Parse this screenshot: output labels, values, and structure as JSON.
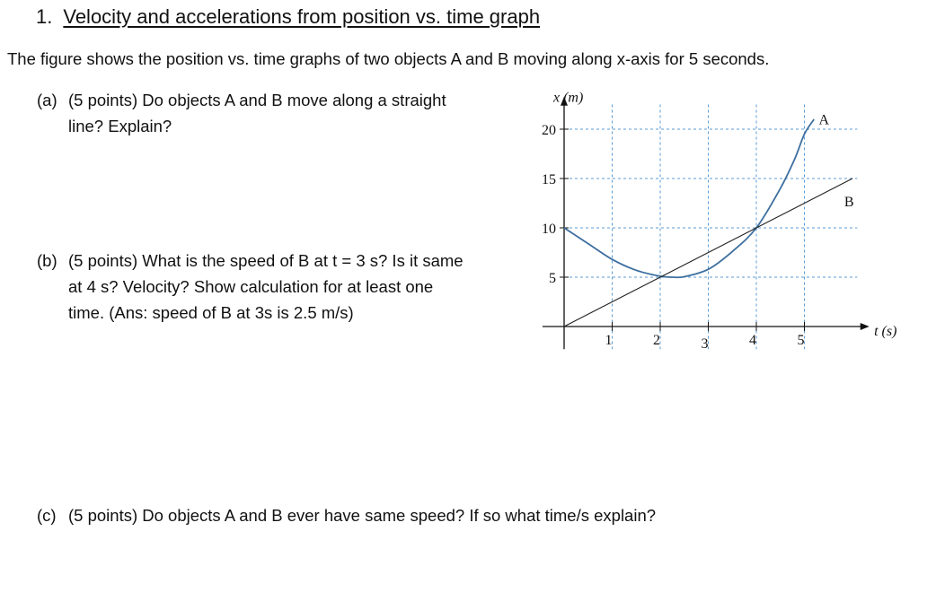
{
  "title": {
    "number": "1.",
    "text": "Velocity and accelerations from position vs. time graph"
  },
  "intro": "The figure shows the position vs. time graphs of two objects A and B moving along x-axis for 5 seconds.",
  "questions": [
    {
      "label": "(a)",
      "lines": [
        "(5 points) Do objects A and B move along a straight",
        "line? Explain?"
      ]
    },
    {
      "label": "(b)",
      "lines": [
        "(5 points) What is the speed of B at t = 3 s? Is it same",
        "at 4 s?  Velocity? Show calculation for at least one",
        "time. (Ans: speed of B at 3s is 2.5 m/s)"
      ]
    },
    {
      "label": "(c)",
      "lines": [
        "(5 points) Do objects A and B ever have same speed? If so what time/s explain?"
      ]
    }
  ],
  "chart_data": {
    "type": "line",
    "xlabel": "t (s)",
    "ylabel": "x (m)",
    "xlim": [
      0,
      6.3
    ],
    "ylim": [
      -2.3,
      22.5
    ],
    "xticks": [
      1,
      2,
      3,
      4,
      5
    ],
    "xtick_labels": [
      "1",
      "2",
      "3",
      "4",
      "5"
    ],
    "yticks": [
      5,
      10,
      15,
      20
    ],
    "ytick_labels": [
      "5",
      "10",
      "15",
      "20"
    ],
    "grid": true,
    "series": [
      {
        "name": "A",
        "color": "#3d6f9f",
        "x": [
          0,
          0.5,
          1,
          1.5,
          2,
          2.25,
          2.5,
          3,
          3.5,
          4,
          4.5,
          4.8,
          5,
          5.2
        ],
        "y": [
          10,
          8.4,
          6.8,
          5.7,
          5.1,
          5.0,
          5.05,
          5.8,
          7.6,
          10,
          14,
          17,
          19.5,
          21
        ]
      },
      {
        "name": "B",
        "color": "#222222",
        "x": [
          0,
          6
        ],
        "y": [
          0,
          15
        ]
      }
    ]
  }
}
